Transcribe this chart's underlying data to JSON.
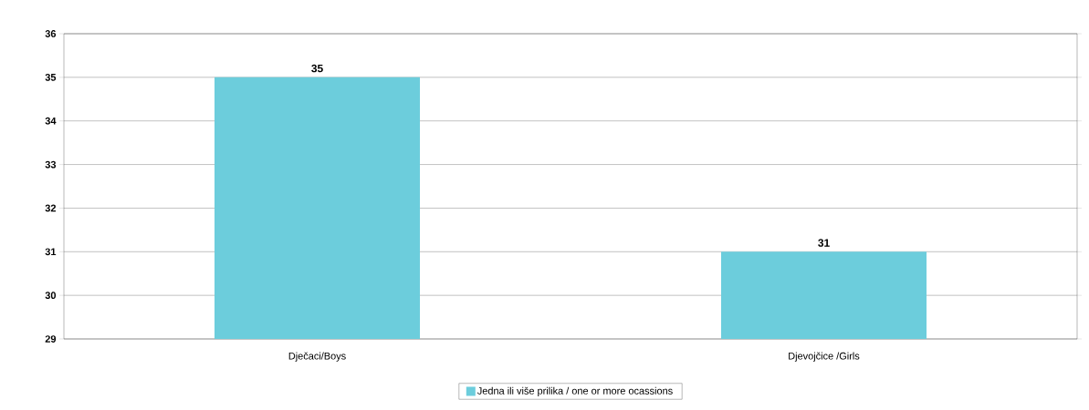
{
  "chart_data": {
    "type": "bar",
    "categories": [
      "Dječaci/Boys",
      "Djevojčice /Girls"
    ],
    "series": [
      {
        "name": "Jedna ili više prilika / one or more ocassions",
        "color": "#6ccddc",
        "values": [
          35,
          31
        ]
      }
    ],
    "ylim": [
      29,
      36
    ],
    "yticks": [
      29,
      30,
      31,
      32,
      33,
      34,
      35,
      36
    ],
    "grid": "y",
    "legend": "bottom",
    "data_labels": true
  }
}
